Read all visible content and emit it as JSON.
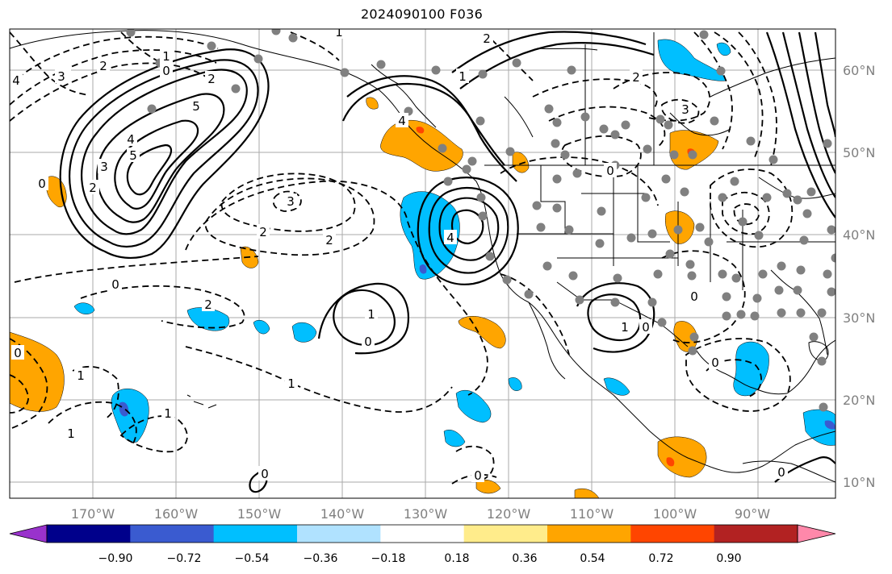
{
  "title": "2024090100 F036",
  "lat_labels": [
    "60°N",
    "50°N",
    "40°N",
    "30°N",
    "20°N",
    "10°N"
  ],
  "lon_labels": [
    "170°W",
    "160°W",
    "150°W",
    "140°W",
    "130°W",
    "120°W",
    "110°W",
    "100°W",
    "90°W"
  ],
  "colorbar": {
    "colors": [
      "#9932cc",
      "#00008b",
      "#3a5bd0",
      "#00bfff",
      "#b0e2ff",
      "#ffffff",
      "#ffec8b",
      "#ffa500",
      "#ff4500",
      "#b22222",
      "#ff88aa"
    ],
    "tick_labels": [
      "−0.90",
      "−0.72",
      "−0.54",
      "−0.36",
      "−0.18",
      "0.18",
      "0.36",
      "0.54",
      "0.72",
      "0.90"
    ]
  },
  "contour_labels": [
    "5",
    "3",
    "2",
    "4",
    "0",
    "2",
    "3",
    "2",
    "3",
    "5",
    "4",
    "3",
    "2",
    "2",
    "0",
    "1",
    "3",
    "0",
    "1",
    "1",
    "0",
    "1",
    "1",
    "0",
    "2",
    "1",
    "0",
    "1",
    "0",
    "0",
    "0",
    "0",
    "0",
    "1",
    "2",
    "3",
    "4",
    "1",
    "2",
    "0",
    "4"
  ]
}
